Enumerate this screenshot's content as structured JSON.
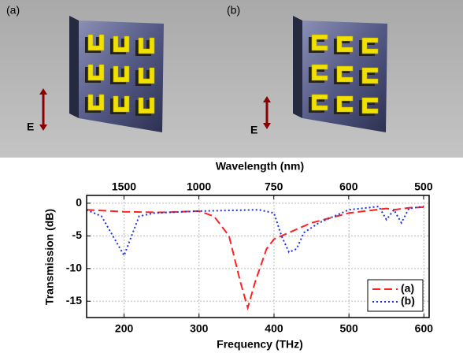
{
  "panels": [
    {
      "label": "(a)",
      "field": "E"
    },
    {
      "label": "(b)",
      "field": "E"
    }
  ],
  "chart_data": {
    "type": "line",
    "xlabel": "Frequency (THz)",
    "ylabel": "Transmission (dB)",
    "x2label": "Wavelength (nm)",
    "xlim": [
      150,
      607
    ],
    "xticks": [
      200,
      300,
      400,
      500,
      600
    ],
    "ylim": [
      -17.5,
      1.2
    ],
    "yticks": [
      0,
      -5,
      -10,
      -15
    ],
    "x2scale": "reciprocal",
    "x2ticks": [
      1500,
      1000,
      750,
      600,
      500
    ],
    "grid": true,
    "legend": "lower right",
    "series": [
      {
        "name": "(a)",
        "color": "#ff2020",
        "dash": "dashed",
        "x": [
          150,
          200,
          250,
          300,
          320,
          340,
          355,
          365,
          375,
          390,
          400,
          420,
          450,
          500,
          550,
          560,
          580,
          600
        ],
        "values": [
          -1,
          -1.3,
          -1.4,
          -1.2,
          -2,
          -5,
          -12,
          -16,
          -12,
          -7,
          -5.5,
          -4.5,
          -3,
          -1.5,
          -0.8,
          -1,
          -0.7,
          -0.6
        ]
      },
      {
        "name": "(b)",
        "color": "#2030e0",
        "dash": "dotted",
        "x": [
          150,
          170,
          185,
          200,
          210,
          220,
          240,
          300,
          380,
          400,
          410,
          420,
          430,
          440,
          460,
          500,
          540,
          550,
          560,
          570,
          580,
          600
        ],
        "values": [
          -1,
          -2,
          -5,
          -8,
          -5,
          -2,
          -1.5,
          -1.2,
          -1,
          -1.5,
          -5,
          -7.5,
          -7,
          -4.5,
          -3,
          -1,
          -0.5,
          -2.5,
          -1,
          -3,
          -0.8,
          -0.5
        ]
      }
    ]
  }
}
